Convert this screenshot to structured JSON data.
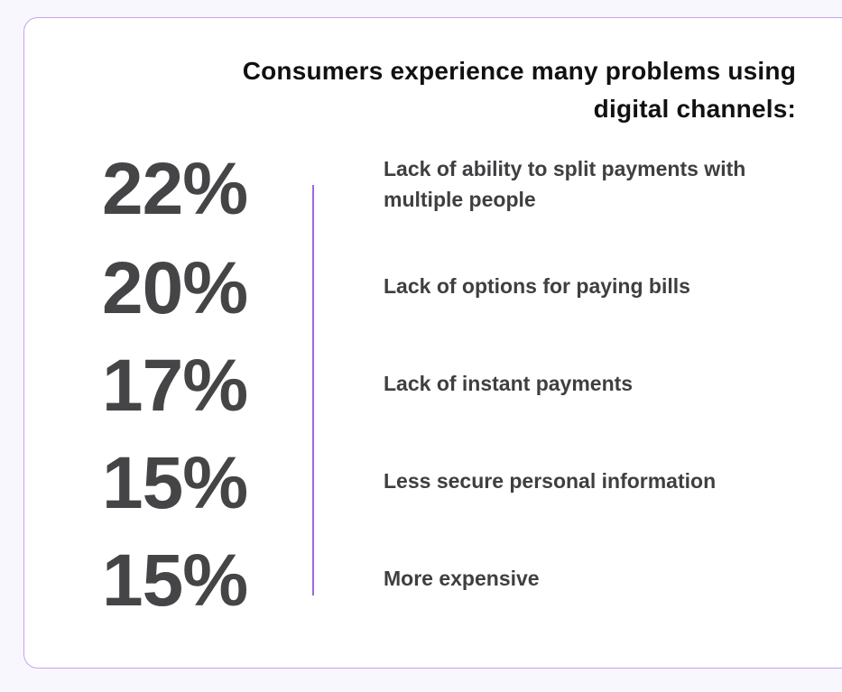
{
  "title": "Consumers experience many problems using digital channels:",
  "colors": {
    "accent": "#9b68e2",
    "text": "#454547",
    "border": "#c4a3f0"
  },
  "items": [
    {
      "percent": "22%",
      "label": "Lack of ability to split payments with multiple people"
    },
    {
      "percent": "20%",
      "label": "Lack of options for paying bills"
    },
    {
      "percent": "17%",
      "label": "Lack of instant payments"
    },
    {
      "percent": "15%",
      "label": "Less secure personal information"
    },
    {
      "percent": "15%",
      "label": "More expensive"
    }
  ]
}
